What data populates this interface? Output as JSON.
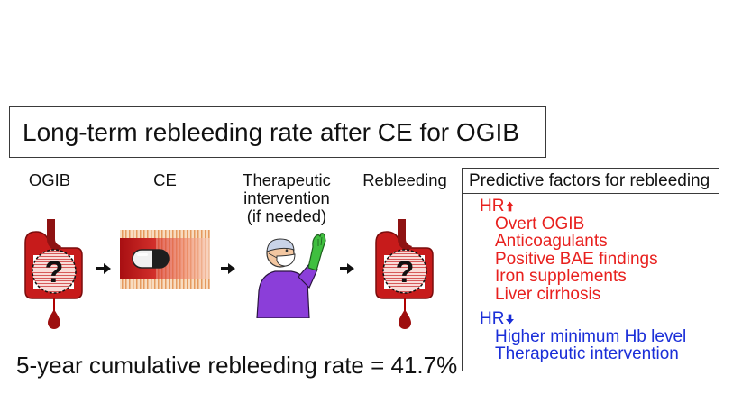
{
  "title": "Long-term rebleeding rate after CE for OGIB",
  "flow": {
    "ogib_label": "OGIB",
    "ce_label": "CE",
    "therapy_label_lines": [
      "Therapeutic",
      "intervention",
      "(if needed)"
    ],
    "rebleeding_label": "Rebleeding",
    "question_mark": "?",
    "icons": [
      "stomach-bleeding-icon",
      "capsule-endoscopy-icon",
      "surgeon-icon",
      "right-arrow-icon"
    ]
  },
  "result": "5-year cumulative rebleeding rate = 41.7%",
  "predictive_factors": {
    "header": "Predictive factors for rebleeding",
    "increased": {
      "label": "HR",
      "arrow_icon": "up-arrow-icon",
      "color": "#e8201e",
      "items": [
        "Overt OGIB",
        "Anticoagulants",
        "Positive BAE findings",
        "Iron supplements",
        "Liver cirrhosis"
      ]
    },
    "decreased": {
      "label": "HR",
      "arrow_icon": "down-arrow-icon",
      "color": "#1a2ed8",
      "items": [
        "Higher minimum Hb level",
        "Therapeutic intervention"
      ]
    }
  }
}
